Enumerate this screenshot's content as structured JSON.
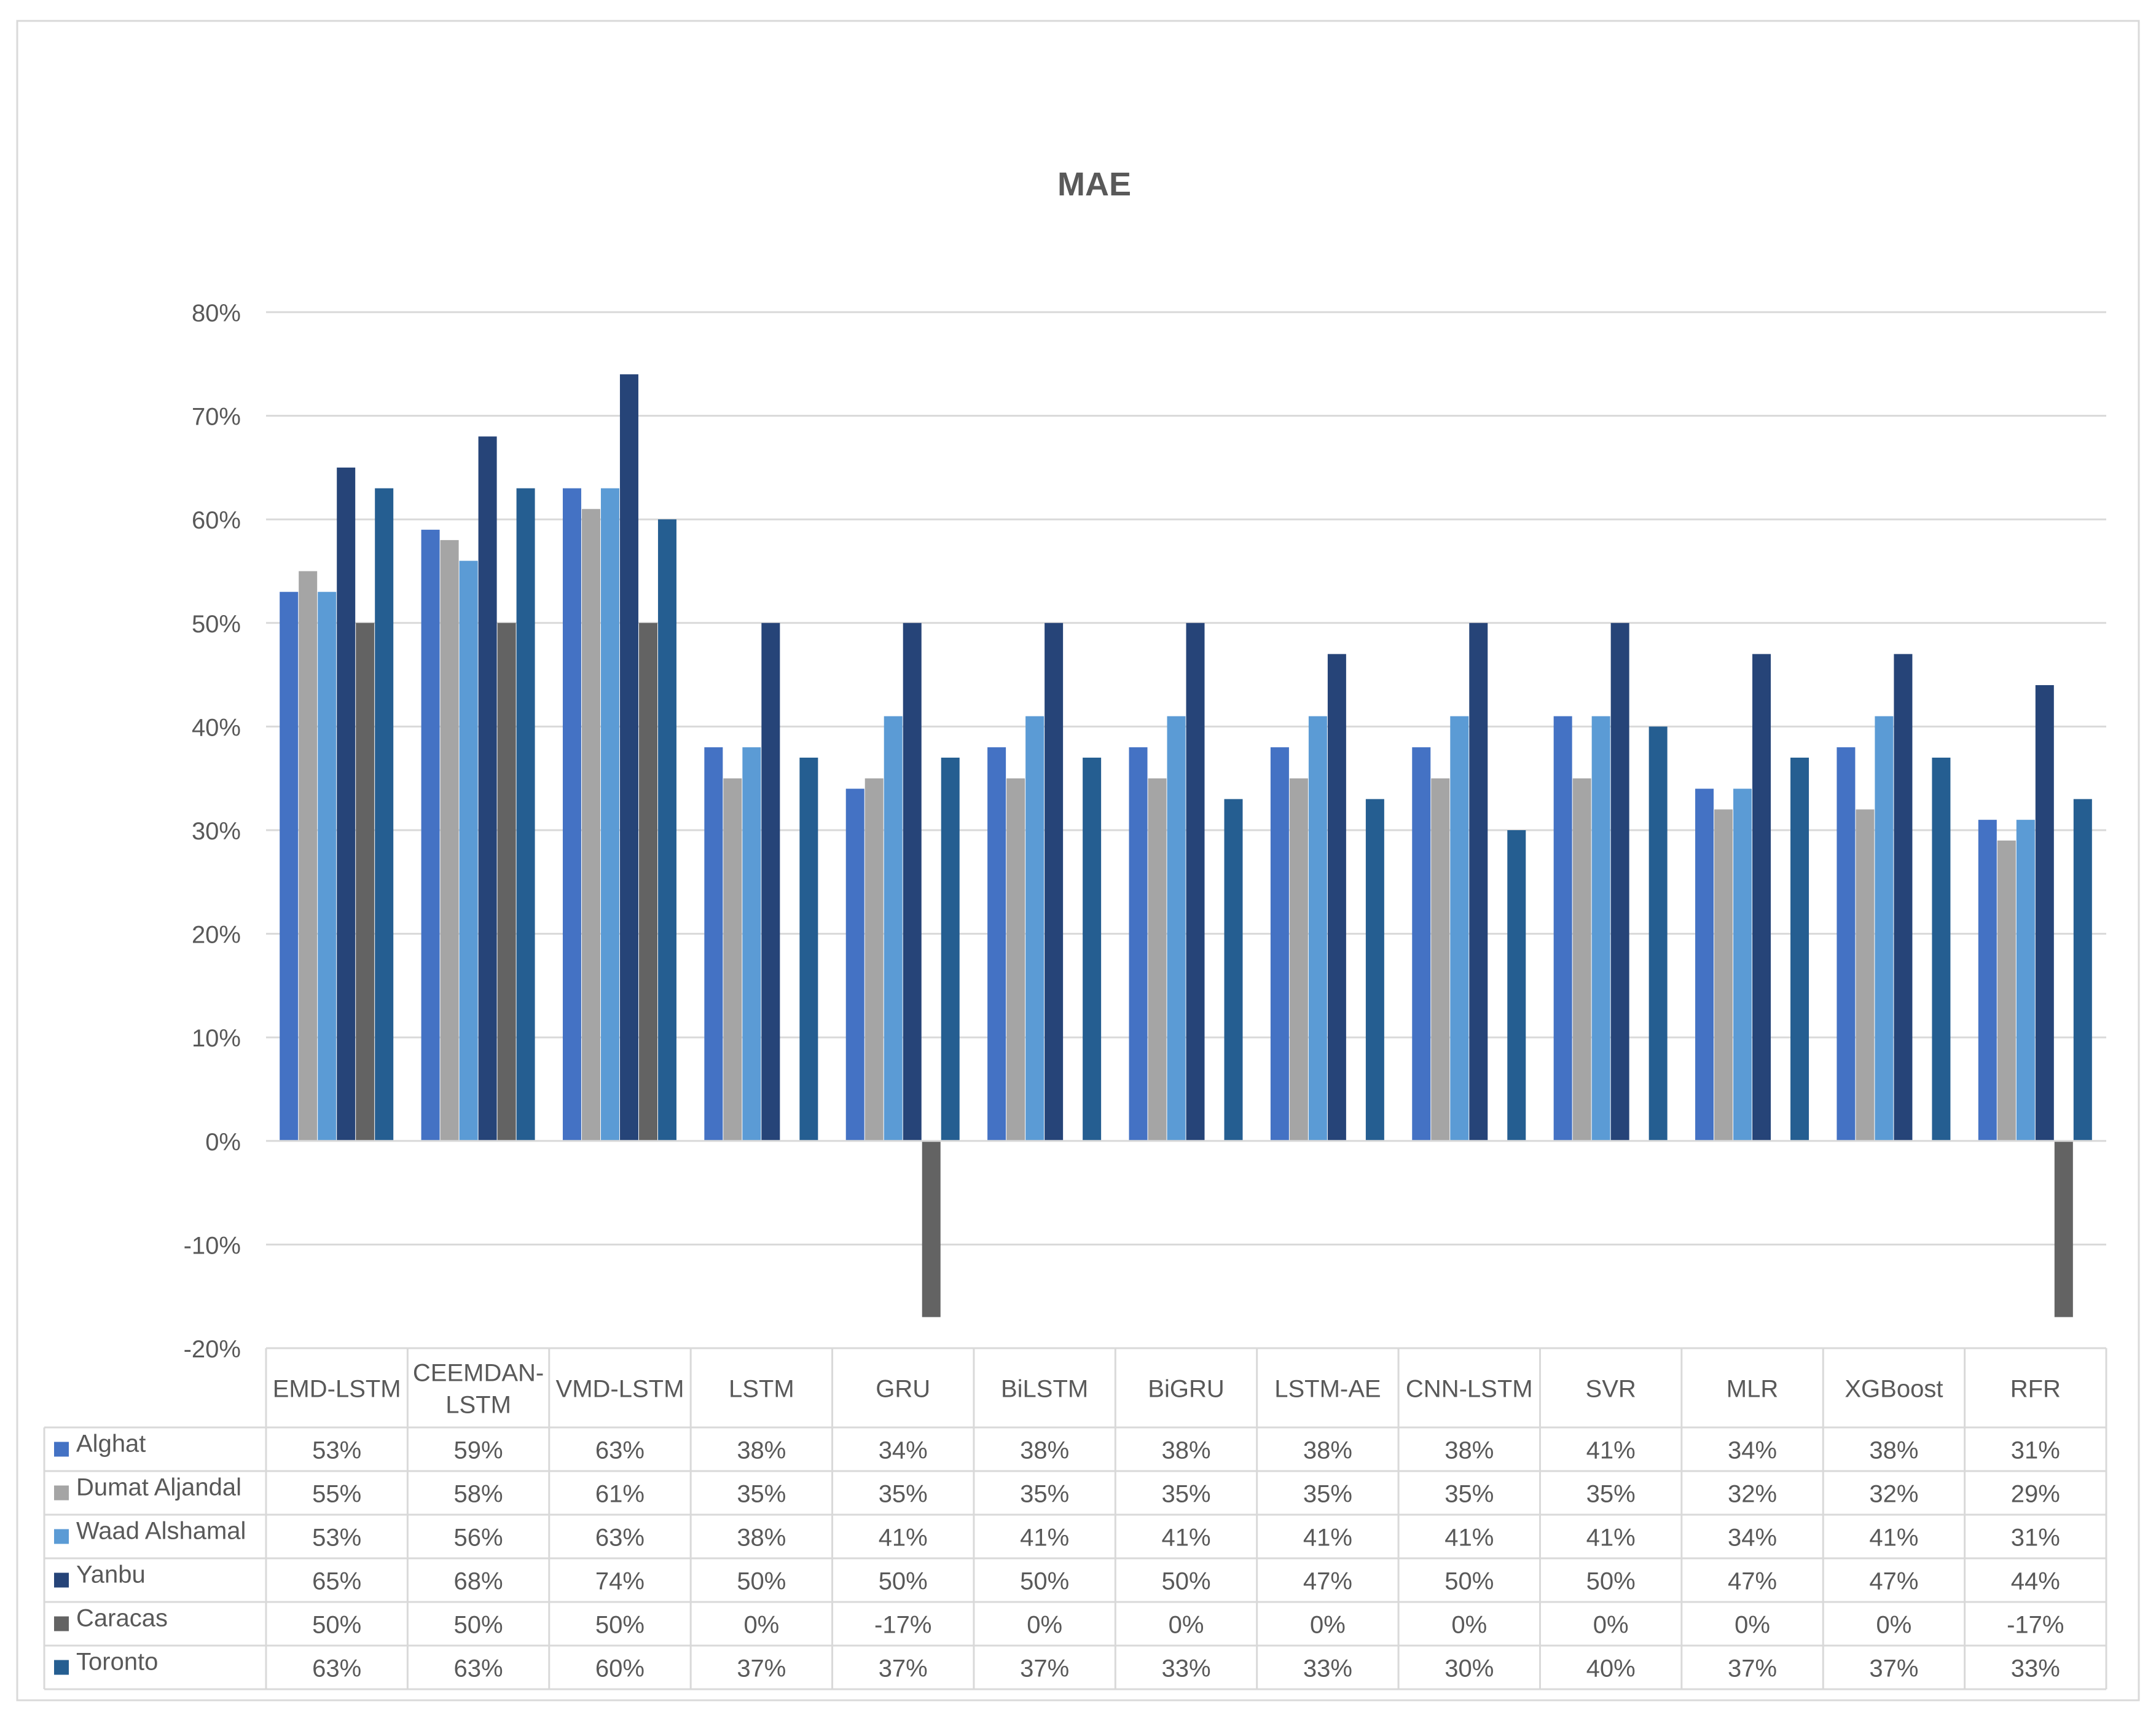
{
  "chart_data": {
    "type": "bar",
    "title": "MAE",
    "xlabel": "",
    "ylabel": "",
    "ylim": [
      -0.2,
      0.8
    ],
    "y_ticks": [
      -0.2,
      -0.1,
      0,
      0.1,
      0.2,
      0.3,
      0.4,
      0.5,
      0.6,
      0.7,
      0.8
    ],
    "y_tick_labels": [
      "-20%",
      "-10%",
      "0%",
      "10%",
      "20%",
      "30%",
      "40%",
      "50%",
      "60%",
      "70%",
      "80%"
    ],
    "grid": true,
    "legend": "data-table-left",
    "categories": [
      "EMD-LSTM",
      "CEEMDAN-LSTM",
      "VMD-LSTM",
      "LSTM",
      "GRU",
      "BiLSTM",
      "BiGRU",
      "LSTM-AE",
      "CNN-LSTM",
      "SVR",
      "MLR",
      "XGBoost",
      "RFR"
    ],
    "category_lines": [
      [
        "EMD-LSTM"
      ],
      [
        "CEEMDAN-",
        "LSTM"
      ],
      [
        "VMD-LSTM"
      ],
      [
        "LSTM"
      ],
      [
        "GRU"
      ],
      [
        "BiLSTM"
      ],
      [
        "BiGRU"
      ],
      [
        "LSTM-AE"
      ],
      [
        "CNN-LSTM"
      ],
      [
        "SVR"
      ],
      [
        "MLR"
      ],
      [
        "XGBoost"
      ],
      [
        "RFR"
      ]
    ],
    "series": [
      {
        "name": "Alghat",
        "color": "#4472C4",
        "values": [
          0.53,
          0.59,
          0.63,
          0.38,
          0.34,
          0.38,
          0.38,
          0.38,
          0.38,
          0.41,
          0.34,
          0.38,
          0.31
        ],
        "labels": [
          "53%",
          "59%",
          "63%",
          "38%",
          "34%",
          "38%",
          "38%",
          "38%",
          "38%",
          "41%",
          "34%",
          "38%",
          "31%"
        ]
      },
      {
        "name": "Dumat Aljandal",
        "color": "#A5A5A5",
        "values": [
          0.55,
          0.58,
          0.61,
          0.35,
          0.35,
          0.35,
          0.35,
          0.35,
          0.35,
          0.35,
          0.32,
          0.32,
          0.29
        ],
        "labels": [
          "55%",
          "58%",
          "61%",
          "35%",
          "35%",
          "35%",
          "35%",
          "35%",
          "35%",
          "35%",
          "32%",
          "32%",
          "29%"
        ]
      },
      {
        "name": "Waad Alshamal",
        "color": "#5B9BD5",
        "values": [
          0.53,
          0.56,
          0.63,
          0.38,
          0.41,
          0.41,
          0.41,
          0.41,
          0.41,
          0.41,
          0.34,
          0.41,
          0.31
        ],
        "labels": [
          "53%",
          "56%",
          "63%",
          "38%",
          "41%",
          "41%",
          "41%",
          "41%",
          "41%",
          "41%",
          "34%",
          "41%",
          "31%"
        ]
      },
      {
        "name": "Yanbu",
        "color": "#264478",
        "values": [
          0.65,
          0.68,
          0.74,
          0.5,
          0.5,
          0.5,
          0.5,
          0.47,
          0.5,
          0.5,
          0.47,
          0.47,
          0.44
        ],
        "labels": [
          "65%",
          "68%",
          "74%",
          "50%",
          "50%",
          "50%",
          "50%",
          "47%",
          "50%",
          "50%",
          "47%",
          "47%",
          "44%"
        ]
      },
      {
        "name": "Caracas",
        "color": "#636363",
        "values": [
          0.5,
          0.5,
          0.5,
          0.0,
          -0.17,
          0.0,
          0.0,
          0.0,
          0.0,
          0.0,
          0.0,
          0.0,
          -0.17
        ],
        "labels": [
          "50%",
          "50%",
          "50%",
          "0%",
          "-17%",
          "0%",
          "0%",
          "0%",
          "0%",
          "0%",
          "0%",
          "0%",
          "-17%"
        ]
      },
      {
        "name": "Toronto",
        "color": "#255E91",
        "values": [
          0.63,
          0.63,
          0.6,
          0.37,
          0.37,
          0.37,
          0.33,
          0.33,
          0.3,
          0.4,
          0.37,
          0.37,
          0.33
        ],
        "labels": [
          "63%",
          "63%",
          "60%",
          "37%",
          "37%",
          "37%",
          "33%",
          "33%",
          "30%",
          "40%",
          "37%",
          "37%",
          "33%"
        ]
      }
    ]
  }
}
